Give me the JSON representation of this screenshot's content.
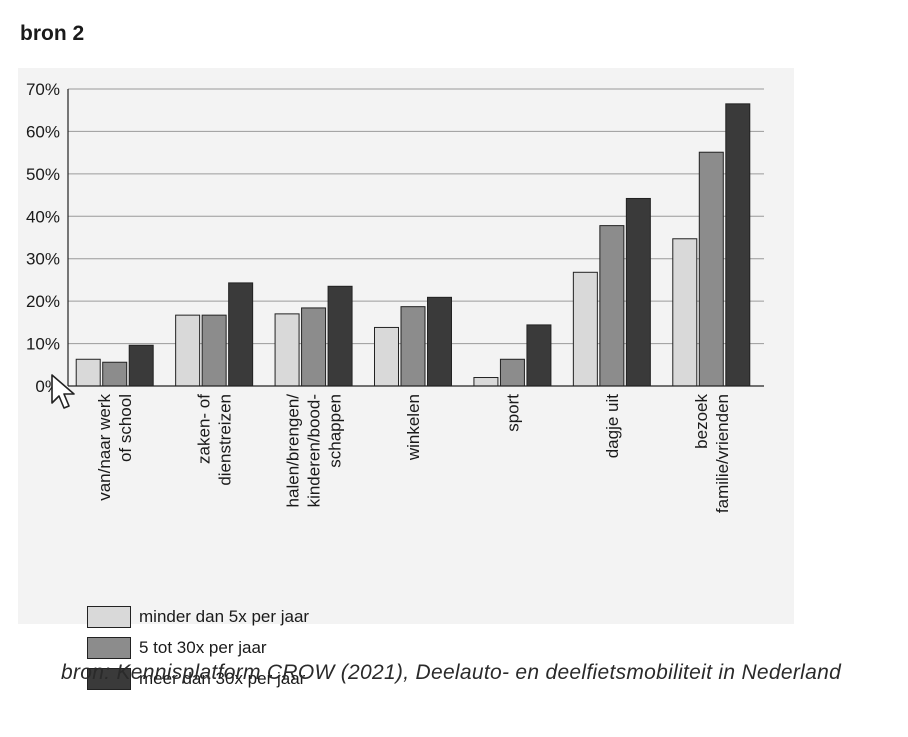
{
  "heading": "bron 2",
  "chart_data": {
    "type": "bar",
    "categories": [
      [
        "van/naar werk",
        "of school"
      ],
      [
        "zaken- of",
        "dienstreizen"
      ],
      [
        "halen/brengen/",
        "kinderen/bood-",
        "schappen"
      ],
      [
        "winkelen"
      ],
      [
        "sport"
      ],
      [
        "dagje uit"
      ],
      [
        "bezoek",
        "familie/vrienden"
      ]
    ],
    "series": [
      {
        "name": "minder dan 5x per jaar",
        "color": "#d9d9d9",
        "values": [
          6.3,
          16.7,
          17.0,
          13.8,
          2.0,
          26.8,
          34.7
        ]
      },
      {
        "name": "5 tot 30x per jaar",
        "color": "#8c8c8c",
        "values": [
          5.6,
          16.7,
          18.4,
          18.7,
          6.3,
          37.8,
          55.1
        ]
      },
      {
        "name": "meer dan 30x per jaar",
        "color": "#3a3a3a",
        "values": [
          9.6,
          24.3,
          23.5,
          20.9,
          14.4,
          44.2,
          66.5
        ]
      }
    ],
    "yticks": [
      "0%",
      "10%",
      "20%",
      "30%",
      "40%",
      "50%",
      "60%",
      "70%"
    ],
    "ylim": [
      0,
      70
    ],
    "grid": true,
    "legend_position": "bottom-left"
  },
  "source": "bron: Kennisplatform CROW (2021), Deelauto- en deelfietsmobiliteit in Nederland",
  "cursor_icon": "mouse-pointer-icon"
}
